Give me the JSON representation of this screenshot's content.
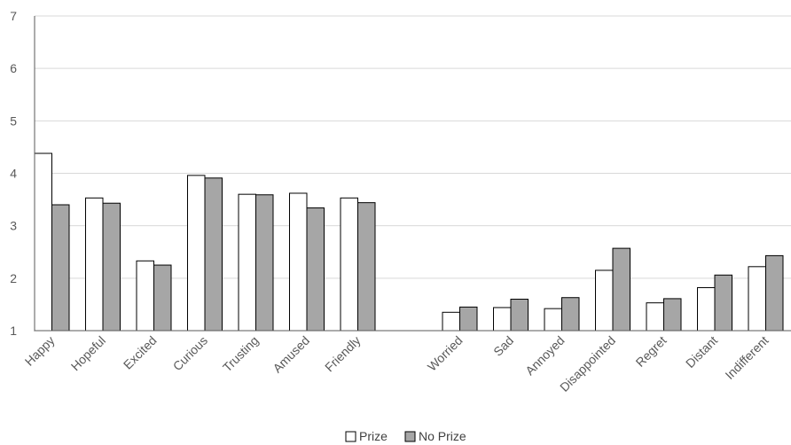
{
  "chart_data": {
    "type": "bar",
    "title": "",
    "xlabel": "",
    "ylabel": "",
    "ylim": [
      1,
      7
    ],
    "yticks": [
      1,
      2,
      3,
      4,
      5,
      6,
      7
    ],
    "grid": true,
    "legend_position": "bottom",
    "categories": [
      "Happy",
      "Hopeful",
      "Excited",
      "Curious",
      "Trusting",
      "Amused",
      "Friendly",
      "",
      "Worried",
      "Sad",
      "Annoyed",
      "Disappointed",
      "Regret",
      "Distant",
      "Indifferent"
    ],
    "series": [
      {
        "name": "Prize",
        "color": "#ffffff",
        "values": [
          4.38,
          3.53,
          2.33,
          3.96,
          3.6,
          3.62,
          3.53,
          null,
          1.35,
          1.44,
          1.42,
          2.15,
          1.53,
          1.82,
          2.22
        ]
      },
      {
        "name": "No Prize",
        "color": "#a6a6a6",
        "values": [
          3.4,
          3.43,
          2.25,
          3.91,
          3.59,
          3.34,
          3.44,
          null,
          1.45,
          1.6,
          1.63,
          2.57,
          1.61,
          2.06,
          2.43
        ]
      }
    ]
  }
}
